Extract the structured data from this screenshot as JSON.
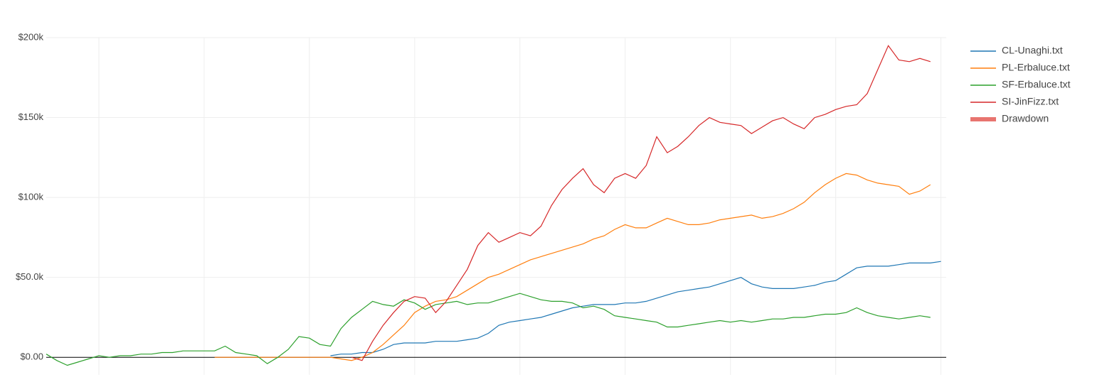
{
  "chart_data": {
    "type": "line",
    "x": [
      0,
      1,
      2,
      3,
      4,
      5,
      6,
      7,
      8,
      9,
      10,
      11,
      12,
      13,
      14,
      15,
      16,
      17,
      18,
      19,
      20,
      21,
      22,
      23,
      24,
      25,
      26,
      27,
      28,
      29,
      30,
      31,
      32,
      33,
      34,
      35,
      36,
      37,
      38,
      39,
      40,
      41,
      42,
      43,
      44,
      45,
      46,
      47,
      48,
      49,
      50,
      51,
      52,
      53,
      54,
      55,
      56,
      57,
      58,
      59,
      60,
      61,
      62,
      63,
      64,
      65,
      66,
      67,
      68,
      69,
      70,
      71,
      72,
      73,
      74,
      75,
      76,
      77,
      78,
      79,
      80,
      81,
      82,
      83,
      84,
      85
    ],
    "xlim": [
      0,
      85.5
    ],
    "xticks": [
      5,
      15,
      25,
      35,
      45,
      55,
      65,
      75,
      85
    ],
    "ylim": [
      -11,
      200
    ],
    "yticks": [
      {
        "value": 0,
        "label": "$0.00"
      },
      {
        "value": 50,
        "label": "$50.0k"
      },
      {
        "value": 100,
        "label": "$100k"
      },
      {
        "value": 150,
        "label": "$150k"
      },
      {
        "value": 200,
        "label": "$200k"
      }
    ],
    "grid": true,
    "legend": "top-right",
    "series": [
      {
        "name": "CL-Unaghi.txt",
        "color": "#1f77b4",
        "values": [
          null,
          null,
          null,
          null,
          null,
          null,
          null,
          null,
          null,
          null,
          null,
          null,
          null,
          null,
          null,
          null,
          null,
          null,
          null,
          null,
          null,
          null,
          null,
          null,
          null,
          null,
          null,
          1,
          2,
          2,
          3,
          3,
          5,
          8,
          9,
          9,
          9,
          10,
          10,
          10,
          11,
          12,
          15,
          20,
          22,
          23,
          24,
          25,
          27,
          29,
          31,
          32,
          33,
          33,
          33,
          34,
          34,
          35,
          37,
          39,
          41,
          42,
          43,
          44,
          46,
          48,
          50,
          46,
          44,
          43,
          43,
          43,
          44,
          45,
          47,
          48,
          52,
          56,
          57,
          57,
          57,
          58,
          59,
          59,
          59,
          60
        ]
      },
      {
        "name": "PL-Erbaluce.txt",
        "color": "#ff7f0e",
        "values": [
          null,
          null,
          null,
          null,
          null,
          null,
          null,
          null,
          null,
          null,
          null,
          null,
          null,
          null,
          null,
          null,
          0,
          0,
          0,
          0,
          0,
          0,
          0,
          0,
          0,
          0,
          0,
          0,
          -1,
          -2,
          0,
          3,
          8,
          14,
          20,
          28,
          32,
          35,
          36,
          38,
          42,
          46,
          50,
          52,
          55,
          58,
          61,
          63,
          65,
          67,
          69,
          71,
          74,
          76,
          80,
          83,
          81,
          81,
          84,
          87,
          85,
          83,
          83,
          84,
          86,
          87,
          88,
          89,
          87,
          88,
          90,
          93,
          97,
          103,
          108,
          112,
          115,
          114,
          111,
          109,
          108,
          107,
          102,
          104,
          108,
          null
        ]
      },
      {
        "name": "SF-Erbaluce.txt",
        "color": "#2ca02c",
        "values": [
          2,
          -2,
          -5,
          -3,
          -1,
          1,
          0,
          1,
          1,
          2,
          2,
          3,
          3,
          4,
          4,
          4,
          4,
          7,
          3,
          2,
          1,
          -4,
          0,
          5,
          13,
          12,
          8,
          7,
          18,
          25,
          30,
          35,
          33,
          32,
          36,
          34,
          30,
          33,
          34,
          35,
          33,
          34,
          34,
          36,
          38,
          40,
          38,
          36,
          35,
          35,
          34,
          31,
          32,
          30,
          26,
          25,
          24,
          23,
          22,
          19,
          19,
          20,
          21,
          22,
          23,
          22,
          23,
          22,
          23,
          24,
          24,
          25,
          25,
          26,
          27,
          27,
          28,
          31,
          28,
          26,
          25,
          24,
          25,
          26,
          25,
          null
        ]
      },
      {
        "name": "SI-JinFizz.txt",
        "color": "#d62728",
        "values": [
          null,
          null,
          null,
          null,
          null,
          null,
          null,
          null,
          null,
          null,
          null,
          null,
          null,
          null,
          null,
          null,
          null,
          null,
          null,
          null,
          null,
          null,
          null,
          null,
          null,
          null,
          null,
          null,
          null,
          0,
          -2,
          10,
          20,
          28,
          35,
          38,
          37,
          28,
          35,
          45,
          55,
          70,
          78,
          72,
          75,
          78,
          76,
          82,
          95,
          105,
          112,
          118,
          108,
          103,
          112,
          115,
          112,
          120,
          138,
          128,
          132,
          138,
          145,
          150,
          147,
          146,
          145,
          140,
          144,
          148,
          150,
          146,
          143,
          150,
          152,
          155,
          157,
          158,
          165,
          180,
          195,
          186,
          185,
          187,
          185,
          null
        ]
      },
      {
        "name": "Drawdown",
        "color": "#e8746f",
        "style": "band"
      }
    ]
  }
}
